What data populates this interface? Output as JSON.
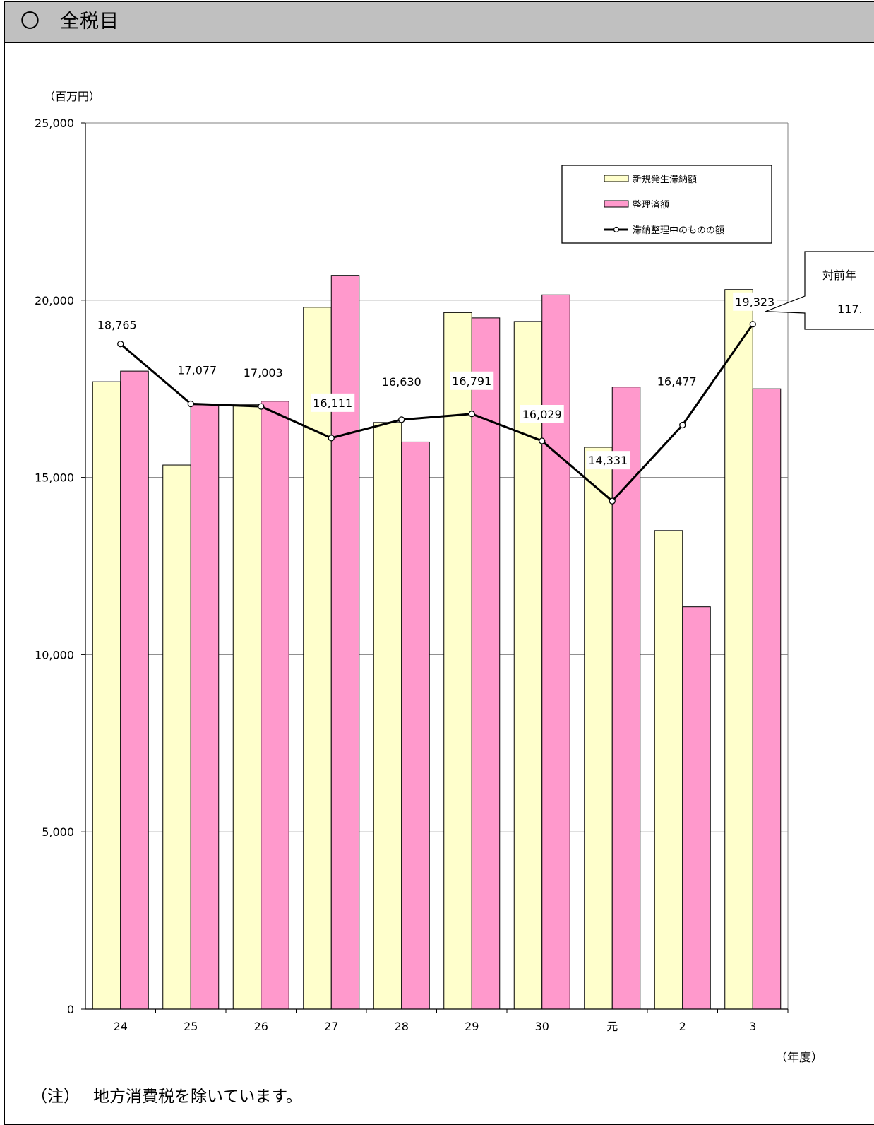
{
  "header": {
    "title": "〇　全税目"
  },
  "note": {
    "label": "（注）",
    "text": "地方消費税を除いています。"
  },
  "callout": {
    "line1": "対前年",
    "line2": "117."
  },
  "colors": {
    "new_delinquent": "#ffffcc",
    "settled": "#ff99cc",
    "line": "#000000",
    "grid": "#808080",
    "header_bg": "#c0c0c0"
  },
  "chart_data": {
    "type": "bar",
    "y_unit_label": "（百万円）",
    "x_unit_label": "（年度）",
    "ylim": [
      0,
      25000
    ],
    "y_ticks": [
      {
        "value": 0,
        "label": "0"
      },
      {
        "value": 5000,
        "label": "5,000"
      },
      {
        "value": 10000,
        "label": "10,000"
      },
      {
        "value": 15000,
        "label": "15,000"
      },
      {
        "value": 20000,
        "label": "20,000"
      },
      {
        "value": 25000,
        "label": "25,000"
      }
    ],
    "grid": true,
    "legend_position": "top-right",
    "categories": [
      "24",
      "25",
      "26",
      "27",
      "28",
      "29",
      "30",
      "元",
      "2",
      "3"
    ],
    "series": [
      {
        "name": "新規発生滞納額",
        "kind": "bar",
        "color": "#ffffcc",
        "values": [
          17700,
          15350,
          17050,
          19800,
          16550,
          19650,
          19400,
          15850,
          13500,
          20300
        ]
      },
      {
        "name": "整理済額",
        "kind": "bar",
        "color": "#ff99cc",
        "values": [
          18000,
          17050,
          17150,
          20700,
          16000,
          19500,
          20150,
          17550,
          11350,
          17500
        ]
      },
      {
        "name": "滞納整理中のものの額",
        "kind": "line",
        "color": "#000000",
        "values": [
          18765,
          17077,
          17003,
          16111,
          16630,
          16791,
          16029,
          14331,
          16477,
          19323
        ],
        "labels": [
          "18,765",
          "17,077",
          "17,003",
          "16,111",
          "16,630",
          "16,791",
          "16,029",
          "14,331",
          "16,477",
          "19,323"
        ]
      }
    ]
  }
}
